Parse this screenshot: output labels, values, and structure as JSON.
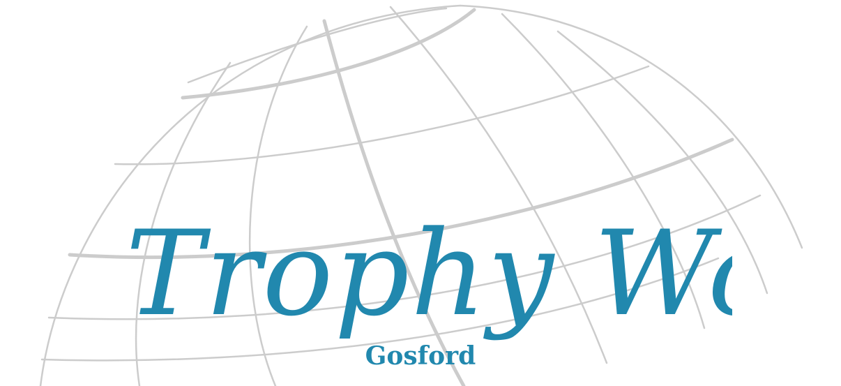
{
  "logo": {
    "title": "Trophy World",
    "subtitle": "Gosford",
    "brand_color": "#2188ae",
    "globe_line_color": "#cccccc",
    "background": "#ffffff",
    "decoration": "globe-wireframe"
  }
}
